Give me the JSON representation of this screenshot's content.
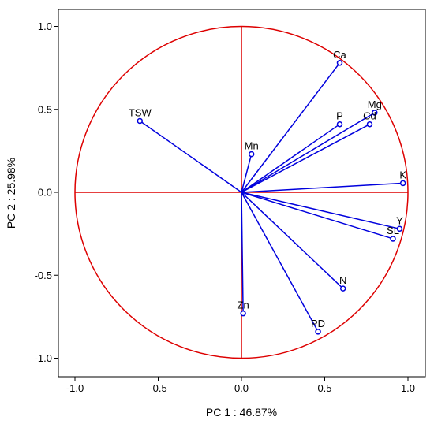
{
  "chart_data": {
    "type": "scatter",
    "subtype": "pca-correlation-circle",
    "title": "",
    "xlabel": "PC 1 : 46.87%",
    "ylabel": "PC 2 : 25.98%",
    "xlim": [
      -1.1,
      1.1
    ],
    "ylim": [
      -1.1,
      1.1
    ],
    "xticks": [
      "-1.0",
      "-0.5",
      "0.0",
      "0.5",
      "1.0"
    ],
    "yticks": [
      "1.0",
      "0.5",
      "0.0",
      "-0.5",
      "-1.0"
    ],
    "grid": false,
    "legend": "none",
    "unit_circle": true,
    "colors": {
      "vectors": "#0000dd",
      "circle": "#dd0000",
      "axes_lines": "#dd0000"
    },
    "points": [
      {
        "label": "Ca",
        "x": 0.59,
        "y": 0.78
      },
      {
        "label": "Mg",
        "x": 0.8,
        "y": 0.48
      },
      {
        "label": "P",
        "x": 0.59,
        "y": 0.41
      },
      {
        "label": "Cd",
        "x": 0.77,
        "y": 0.41
      },
      {
        "label": "TSW",
        "x": -0.61,
        "y": 0.43
      },
      {
        "label": "Mn",
        "x": 0.06,
        "y": 0.23
      },
      {
        "label": "K",
        "x": 0.97,
        "y": 0.055
      },
      {
        "label": "Y",
        "x": 0.95,
        "y": -0.22
      },
      {
        "label": "SL",
        "x": 0.91,
        "y": -0.28
      },
      {
        "label": "N",
        "x": 0.61,
        "y": -0.58
      },
      {
        "label": "Zn",
        "x": 0.01,
        "y": -0.73
      },
      {
        "label": "PD",
        "x": 0.46,
        "y": -0.84
      }
    ]
  }
}
